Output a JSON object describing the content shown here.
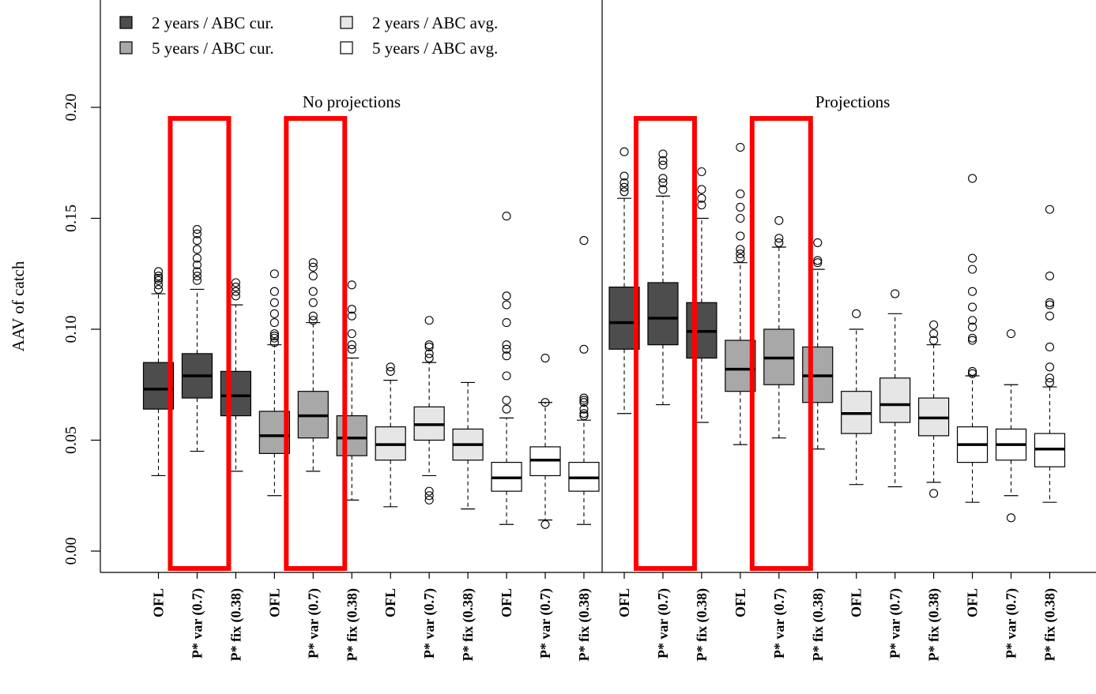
{
  "chart_data": {
    "type": "boxplot",
    "ylabel": "AAV of catch",
    "ylim": [
      -0.01,
      0.245
    ],
    "yticks": [
      0.0,
      0.05,
      0.1,
      0.15,
      0.2
    ],
    "ytick_labels": [
      "0.00",
      "0.05",
      "0.10",
      "0.15",
      "0.20"
    ],
    "grid": false,
    "legend_position": "top-left",
    "legend": [
      {
        "label": "2 years / ABC cur.",
        "color": "#4d4d4d"
      },
      {
        "label": "2 years / ABC avg.",
        "color": "#e6e6e6"
      },
      {
        "label": "5 years / ABC cur.",
        "color": "#a8a8a8"
      },
      {
        "label": "5 years / ABC avg.",
        "color": "#ffffff"
      }
    ],
    "panels": [
      {
        "label": "No projections",
        "box_start": 0,
        "box_end": 11
      },
      {
        "label": "Projections",
        "box_start": 12,
        "box_end": 23
      }
    ],
    "highlight_color": "#ff0000",
    "highlighted_boxes": [
      1,
      4,
      13,
      16
    ],
    "boxes": [
      {
        "category": "OFL",
        "group": "2 years / ABC cur.",
        "color": "#4d4d4d",
        "q1": 0.064,
        "median": 0.073,
        "q3": 0.085,
        "whisker_low": 0.034,
        "whisker_high": 0.116,
        "outliers": [
          0.118,
          0.12,
          0.122,
          0.123,
          0.124,
          0.126
        ]
      },
      {
        "category": "P* var (0.7)",
        "group": "2 years / ABC cur.",
        "color": "#4d4d4d",
        "q1": 0.069,
        "median": 0.079,
        "q3": 0.089,
        "whisker_low": 0.045,
        "whisker_high": 0.118,
        "outliers": [
          0.122,
          0.124,
          0.126,
          0.129,
          0.132,
          0.136,
          0.14,
          0.143,
          0.145
        ]
      },
      {
        "category": "P* fix (0.38)",
        "group": "2 years / ABC cur.",
        "color": "#4d4d4d",
        "q1": 0.061,
        "median": 0.07,
        "q3": 0.081,
        "whisker_low": 0.036,
        "whisker_high": 0.111,
        "outliers": [
          0.115,
          0.117,
          0.119,
          0.121
        ]
      },
      {
        "category": "OFL",
        "group": "5 years / ABC cur.",
        "color": "#a8a8a8",
        "q1": 0.044,
        "median": 0.052,
        "q3": 0.063,
        "whisker_low": 0.025,
        "whisker_high": 0.093,
        "outliers": [
          0.094,
          0.096,
          0.097,
          0.098,
          0.103,
          0.107,
          0.112,
          0.117,
          0.125
        ]
      },
      {
        "category": "P* var (0.7)",
        "group": "5 years / ABC cur.",
        "color": "#a8a8a8",
        "q1": 0.051,
        "median": 0.061,
        "q3": 0.072,
        "whisker_low": 0.036,
        "whisker_high": 0.103,
        "outliers": [
          0.104,
          0.106,
          0.112,
          0.117,
          0.124,
          0.128,
          0.13
        ]
      },
      {
        "category": "P* fix (0.38)",
        "group": "5 years / ABC cur.",
        "color": "#a8a8a8",
        "q1": 0.043,
        "median": 0.051,
        "q3": 0.061,
        "whisker_low": 0.023,
        "whisker_high": 0.087,
        "outliers": [
          0.091,
          0.093,
          0.098,
          0.106,
          0.109,
          0.12
        ]
      },
      {
        "category": "OFL",
        "group": "2 years / ABC avg.",
        "color": "#e6e6e6",
        "q1": 0.041,
        "median": 0.048,
        "q3": 0.056,
        "whisker_low": 0.02,
        "whisker_high": 0.077,
        "outliers": [
          0.081,
          0.083
        ]
      },
      {
        "category": "P* var (0.7)",
        "group": "2 years / ABC avg.",
        "color": "#e6e6e6",
        "q1": 0.05,
        "median": 0.057,
        "q3": 0.065,
        "whisker_low": 0.034,
        "whisker_high": 0.085,
        "outliers": [
          0.023,
          0.025,
          0.027,
          0.087,
          0.089,
          0.092,
          0.093,
          0.104
        ]
      },
      {
        "category": "P* fix (0.38)",
        "group": "2 years / ABC avg.",
        "color": "#e6e6e6",
        "q1": 0.041,
        "median": 0.048,
        "q3": 0.055,
        "whisker_low": 0.019,
        "whisker_high": 0.076,
        "outliers": []
      },
      {
        "category": "OFL",
        "group": "5 years / ABC avg.",
        "color": "#ffffff",
        "q1": 0.027,
        "median": 0.033,
        "q3": 0.04,
        "whisker_low": 0.012,
        "whisker_high": 0.06,
        "outliers": [
          0.064,
          0.068,
          0.079,
          0.088,
          0.091,
          0.093,
          0.103,
          0.111,
          0.115,
          0.151
        ]
      },
      {
        "category": "P* var (0.7)",
        "group": "5 years / ABC avg.",
        "color": "#ffffff",
        "q1": 0.034,
        "median": 0.041,
        "q3": 0.047,
        "whisker_low": 0.014,
        "whisker_high": 0.067,
        "outliers": [
          0.012,
          0.067,
          0.087
        ]
      },
      {
        "category": "P* fix (0.38)",
        "group": "5 years / ABC avg.",
        "color": "#ffffff",
        "q1": 0.027,
        "median": 0.033,
        "q3": 0.04,
        "whisker_low": 0.012,
        "whisker_high": 0.059,
        "outliers": [
          0.061,
          0.062,
          0.064,
          0.067,
          0.068,
          0.069,
          0.091,
          0.14
        ]
      },
      {
        "category": "OFL",
        "group": "2 years / ABC cur.",
        "color": "#4d4d4d",
        "q1": 0.091,
        "median": 0.103,
        "q3": 0.119,
        "whisker_low": 0.062,
        "whisker_high": 0.159,
        "outliers": [
          0.162,
          0.164,
          0.166,
          0.169,
          0.18
        ]
      },
      {
        "category": "P* var (0.7)",
        "group": "2 years / ABC cur.",
        "color": "#4d4d4d",
        "q1": 0.093,
        "median": 0.105,
        "q3": 0.121,
        "whisker_low": 0.066,
        "whisker_high": 0.16,
        "outliers": [
          0.163,
          0.166,
          0.168,
          0.174,
          0.176,
          0.179
        ]
      },
      {
        "category": "P* fix (0.38)",
        "group": "2 years / ABC cur.",
        "color": "#4d4d4d",
        "q1": 0.087,
        "median": 0.099,
        "q3": 0.112,
        "whisker_low": 0.058,
        "whisker_high": 0.15,
        "outliers": [
          0.156,
          0.159,
          0.163,
          0.171
        ]
      },
      {
        "category": "OFL",
        "group": "5 years / ABC cur.",
        "color": "#a8a8a8",
        "q1": 0.072,
        "median": 0.082,
        "q3": 0.095,
        "whisker_low": 0.048,
        "whisker_high": 0.13,
        "outliers": [
          0.132,
          0.134,
          0.136,
          0.142,
          0.15,
          0.155,
          0.161,
          0.182
        ]
      },
      {
        "category": "P* var (0.7)",
        "group": "5 years / ABC cur.",
        "color": "#a8a8a8",
        "q1": 0.075,
        "median": 0.087,
        "q3": 0.1,
        "whisker_low": 0.051,
        "whisker_high": 0.137,
        "outliers": [
          0.139,
          0.141,
          0.149
        ]
      },
      {
        "category": "P* fix (0.38)",
        "group": "5 years / ABC cur.",
        "color": "#a8a8a8",
        "q1": 0.067,
        "median": 0.079,
        "q3": 0.092,
        "whisker_low": 0.046,
        "whisker_high": 0.127,
        "outliers": [
          0.13,
          0.131,
          0.139
        ]
      },
      {
        "category": "OFL",
        "group": "2 years / ABC avg.",
        "color": "#e6e6e6",
        "q1": 0.053,
        "median": 0.062,
        "q3": 0.072,
        "whisker_low": 0.03,
        "whisker_high": 0.1,
        "outliers": [
          0.107
        ]
      },
      {
        "category": "P* var (0.7)",
        "group": "2 years / ABC avg.",
        "color": "#e6e6e6",
        "q1": 0.058,
        "median": 0.066,
        "q3": 0.078,
        "whisker_low": 0.029,
        "whisker_high": 0.107,
        "outliers": [
          0.116
        ]
      },
      {
        "category": "P* fix (0.38)",
        "group": "2 years / ABC avg.",
        "color": "#e6e6e6",
        "q1": 0.052,
        "median": 0.06,
        "q3": 0.069,
        "whisker_low": 0.031,
        "whisker_high": 0.093,
        "outliers": [
          0.026,
          0.095,
          0.098,
          0.102
        ]
      },
      {
        "category": "OFL",
        "group": "5 years / ABC avg.",
        "color": "#ffffff",
        "q1": 0.04,
        "median": 0.048,
        "q3": 0.056,
        "whisker_low": 0.022,
        "whisker_high": 0.079,
        "outliers": [
          0.08,
          0.081,
          0.095,
          0.096,
          0.101,
          0.104,
          0.11,
          0.117,
          0.127,
          0.132,
          0.168
        ]
      },
      {
        "category": "P* var (0.7)",
        "group": "5 years / ABC avg.",
        "color": "#ffffff",
        "q1": 0.041,
        "median": 0.048,
        "q3": 0.055,
        "whisker_low": 0.025,
        "whisker_high": 0.075,
        "outliers": [
          0.015,
          0.098
        ]
      },
      {
        "category": "P* fix (0.38)",
        "group": "5 years / ABC avg.",
        "color": "#ffffff",
        "q1": 0.038,
        "median": 0.046,
        "q3": 0.053,
        "whisker_low": 0.022,
        "whisker_high": 0.074,
        "outliers": [
          0.076,
          0.078,
          0.083,
          0.092,
          0.106,
          0.111,
          0.112,
          0.124,
          0.154
        ]
      }
    ]
  }
}
